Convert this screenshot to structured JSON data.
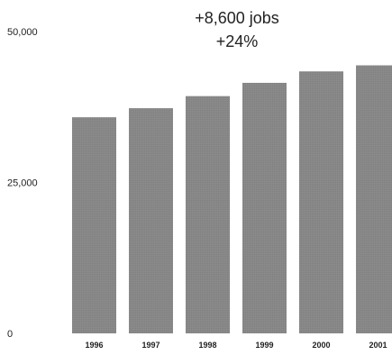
{
  "chart_data": {
    "type": "bar",
    "categories": [
      "1996",
      "1997",
      "1998",
      "1999",
      "2000",
      "2001"
    ],
    "values": [
      35800,
      37300,
      39300,
      41500,
      43400,
      44400
    ],
    "y_ticks": [
      "0",
      "25,000",
      "50,000"
    ],
    "y_tick_values": [
      0,
      25000,
      50000
    ],
    "ylim": [
      0,
      50000
    ],
    "grid": false,
    "annotations": [
      "+8,600 jobs",
      "+24%"
    ],
    "title": "",
    "xlabel": "",
    "ylabel": "",
    "colors": {
      "bar": "#8a8a8a",
      "text": "#222222",
      "background": "#ffffff"
    }
  }
}
